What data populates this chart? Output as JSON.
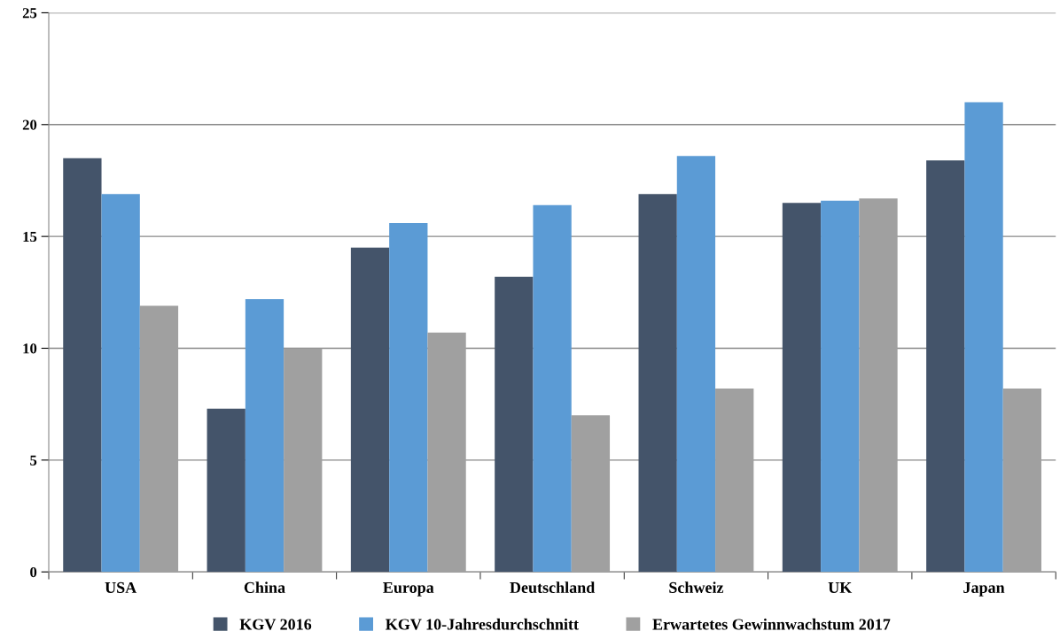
{
  "chart_data": {
    "type": "bar",
    "categories": [
      "USA",
      "China",
      "Europa",
      "Deutschland",
      "Schweiz",
      "UK",
      "Japan"
    ],
    "series": [
      {
        "name": "KGV 2016",
        "color": "#44546a",
        "values": [
          18.5,
          7.3,
          14.5,
          13.2,
          16.9,
          16.5,
          18.4
        ]
      },
      {
        "name": "KGV 10-Jahresdurchschnitt",
        "color": "#5b9bd5",
        "values": [
          16.9,
          12.2,
          15.6,
          16.4,
          18.6,
          16.6,
          21.0
        ]
      },
      {
        "name": "Erwartetes Gewinnwachstum 2017",
        "color": "#a0a0a0",
        "values": [
          11.9,
          10.0,
          10.7,
          7.0,
          8.2,
          16.7,
          8.2
        ]
      }
    ],
    "ylim": [
      0,
      25
    ],
    "yticks": [
      0,
      5,
      10,
      15,
      20,
      25
    ],
    "grid": "y",
    "legend": "bottom"
  }
}
